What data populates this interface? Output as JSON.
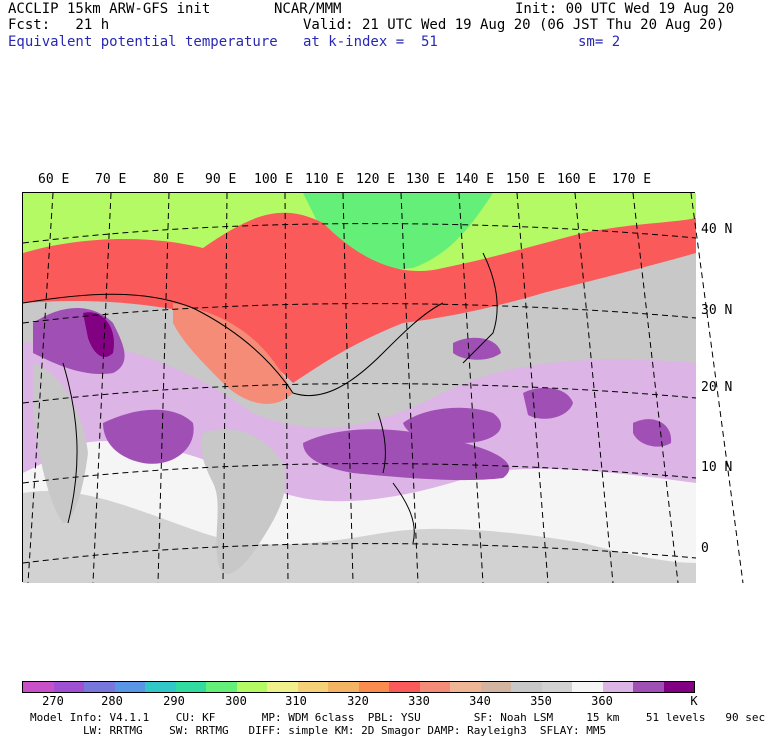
{
  "header": {
    "model": "ACCLIP 15km ARW-GFS init",
    "center": "NCAR/MMM",
    "init": "Init: 00 UTC Wed 19 Aug 20",
    "fcst": "Fcst:   21 h",
    "valid": "Valid: 21 UTC Wed 19 Aug 20 (06 JST Thu 20 Aug 20)",
    "field": "Equivalent potential temperature",
    "level": "at k-index =  51",
    "smooth": "sm= 2"
  },
  "map": {
    "lon_labels": [
      "60 E",
      "70 E",
      "80 E",
      "90 E",
      "100 E",
      "110 E",
      "120 E",
      "130 E",
      "140 E",
      "150 E",
      "160 E",
      "170 E"
    ],
    "lat_labels": [
      "40 N",
      "30 N",
      "20 N",
      "10 N",
      "0"
    ]
  },
  "colorbar": {
    "colors": [
      "#c850c8",
      "#a050d2",
      "#7878dc",
      "#5a96e6",
      "#32c8c8",
      "#32dca0",
      "#64f078",
      "#b4fa64",
      "#f0f08c",
      "#f5d278",
      "#f5b464",
      "#fa8c50",
      "#fa5a5a",
      "#f58c78",
      "#f0b496",
      "#d2b4a0",
      "#c8c8c8",
      "#d2d2d2",
      "#f5f5f5",
      "#dcb4e6",
      "#a050b4",
      "#820082"
    ],
    "ticks": [
      "270",
      "280",
      "290",
      "300",
      "310",
      "320",
      "330",
      "340",
      "350",
      "360"
    ],
    "unit": "K"
  },
  "footer": {
    "line1": "Model Info: V4.1.1    CU: KF       MP: WDM 6class  PBL: YSU        SF: Noah LSM     15 km    51 levels   90 sec",
    "line2": "        LW: RRTMG    SW: RRTMG   DIFF: simple KM: 2D Smagor DAMP: Rayleigh3  SFLAY: MM5"
  }
}
